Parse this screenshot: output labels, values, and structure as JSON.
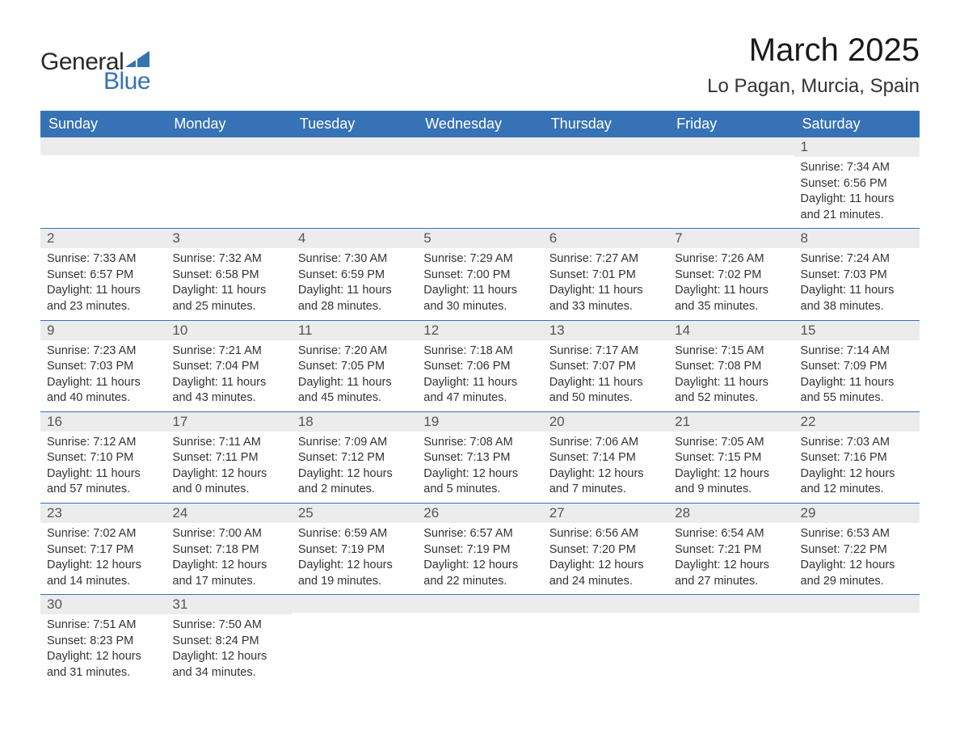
{
  "logo": {
    "text_general": "General",
    "text_blue": "Blue",
    "shape_color": "#3672b5"
  },
  "header": {
    "month_title": "March 2025",
    "location": "Lo Pagan, Murcia, Spain"
  },
  "calendar": {
    "header_bg": "#3672b5",
    "header_text_color": "#ffffff",
    "row_border_color": "#3672b5",
    "daynum_bg": "#ececec",
    "daynum_color": "#555555",
    "body_text_color": "#333333",
    "day_headers": [
      "Sunday",
      "Monday",
      "Tuesday",
      "Wednesday",
      "Thursday",
      "Friday",
      "Saturday"
    ],
    "weeks": [
      [
        {
          "day": "",
          "sunrise": "",
          "sunset": "",
          "daylight": ""
        },
        {
          "day": "",
          "sunrise": "",
          "sunset": "",
          "daylight": ""
        },
        {
          "day": "",
          "sunrise": "",
          "sunset": "",
          "daylight": ""
        },
        {
          "day": "",
          "sunrise": "",
          "sunset": "",
          "daylight": ""
        },
        {
          "day": "",
          "sunrise": "",
          "sunset": "",
          "daylight": ""
        },
        {
          "day": "",
          "sunrise": "",
          "sunset": "",
          "daylight": ""
        },
        {
          "day": "1",
          "sunrise": "Sunrise: 7:34 AM",
          "sunset": "Sunset: 6:56 PM",
          "daylight": "Daylight: 11 hours and 21 minutes."
        }
      ],
      [
        {
          "day": "2",
          "sunrise": "Sunrise: 7:33 AM",
          "sunset": "Sunset: 6:57 PM",
          "daylight": "Daylight: 11 hours and 23 minutes."
        },
        {
          "day": "3",
          "sunrise": "Sunrise: 7:32 AM",
          "sunset": "Sunset: 6:58 PM",
          "daylight": "Daylight: 11 hours and 25 minutes."
        },
        {
          "day": "4",
          "sunrise": "Sunrise: 7:30 AM",
          "sunset": "Sunset: 6:59 PM",
          "daylight": "Daylight: 11 hours and 28 minutes."
        },
        {
          "day": "5",
          "sunrise": "Sunrise: 7:29 AM",
          "sunset": "Sunset: 7:00 PM",
          "daylight": "Daylight: 11 hours and 30 minutes."
        },
        {
          "day": "6",
          "sunrise": "Sunrise: 7:27 AM",
          "sunset": "Sunset: 7:01 PM",
          "daylight": "Daylight: 11 hours and 33 minutes."
        },
        {
          "day": "7",
          "sunrise": "Sunrise: 7:26 AM",
          "sunset": "Sunset: 7:02 PM",
          "daylight": "Daylight: 11 hours and 35 minutes."
        },
        {
          "day": "8",
          "sunrise": "Sunrise: 7:24 AM",
          "sunset": "Sunset: 7:03 PM",
          "daylight": "Daylight: 11 hours and 38 minutes."
        }
      ],
      [
        {
          "day": "9",
          "sunrise": "Sunrise: 7:23 AM",
          "sunset": "Sunset: 7:03 PM",
          "daylight": "Daylight: 11 hours and 40 minutes."
        },
        {
          "day": "10",
          "sunrise": "Sunrise: 7:21 AM",
          "sunset": "Sunset: 7:04 PM",
          "daylight": "Daylight: 11 hours and 43 minutes."
        },
        {
          "day": "11",
          "sunrise": "Sunrise: 7:20 AM",
          "sunset": "Sunset: 7:05 PM",
          "daylight": "Daylight: 11 hours and 45 minutes."
        },
        {
          "day": "12",
          "sunrise": "Sunrise: 7:18 AM",
          "sunset": "Sunset: 7:06 PM",
          "daylight": "Daylight: 11 hours and 47 minutes."
        },
        {
          "day": "13",
          "sunrise": "Sunrise: 7:17 AM",
          "sunset": "Sunset: 7:07 PM",
          "daylight": "Daylight: 11 hours and 50 minutes."
        },
        {
          "day": "14",
          "sunrise": "Sunrise: 7:15 AM",
          "sunset": "Sunset: 7:08 PM",
          "daylight": "Daylight: 11 hours and 52 minutes."
        },
        {
          "day": "15",
          "sunrise": "Sunrise: 7:14 AM",
          "sunset": "Sunset: 7:09 PM",
          "daylight": "Daylight: 11 hours and 55 minutes."
        }
      ],
      [
        {
          "day": "16",
          "sunrise": "Sunrise: 7:12 AM",
          "sunset": "Sunset: 7:10 PM",
          "daylight": "Daylight: 11 hours and 57 minutes."
        },
        {
          "day": "17",
          "sunrise": "Sunrise: 7:11 AM",
          "sunset": "Sunset: 7:11 PM",
          "daylight": "Daylight: 12 hours and 0 minutes."
        },
        {
          "day": "18",
          "sunrise": "Sunrise: 7:09 AM",
          "sunset": "Sunset: 7:12 PM",
          "daylight": "Daylight: 12 hours and 2 minutes."
        },
        {
          "day": "19",
          "sunrise": "Sunrise: 7:08 AM",
          "sunset": "Sunset: 7:13 PM",
          "daylight": "Daylight: 12 hours and 5 minutes."
        },
        {
          "day": "20",
          "sunrise": "Sunrise: 7:06 AM",
          "sunset": "Sunset: 7:14 PM",
          "daylight": "Daylight: 12 hours and 7 minutes."
        },
        {
          "day": "21",
          "sunrise": "Sunrise: 7:05 AM",
          "sunset": "Sunset: 7:15 PM",
          "daylight": "Daylight: 12 hours and 9 minutes."
        },
        {
          "day": "22",
          "sunrise": "Sunrise: 7:03 AM",
          "sunset": "Sunset: 7:16 PM",
          "daylight": "Daylight: 12 hours and 12 minutes."
        }
      ],
      [
        {
          "day": "23",
          "sunrise": "Sunrise: 7:02 AM",
          "sunset": "Sunset: 7:17 PM",
          "daylight": "Daylight: 12 hours and 14 minutes."
        },
        {
          "day": "24",
          "sunrise": "Sunrise: 7:00 AM",
          "sunset": "Sunset: 7:18 PM",
          "daylight": "Daylight: 12 hours and 17 minutes."
        },
        {
          "day": "25",
          "sunrise": "Sunrise: 6:59 AM",
          "sunset": "Sunset: 7:19 PM",
          "daylight": "Daylight: 12 hours and 19 minutes."
        },
        {
          "day": "26",
          "sunrise": "Sunrise: 6:57 AM",
          "sunset": "Sunset: 7:19 PM",
          "daylight": "Daylight: 12 hours and 22 minutes."
        },
        {
          "day": "27",
          "sunrise": "Sunrise: 6:56 AM",
          "sunset": "Sunset: 7:20 PM",
          "daylight": "Daylight: 12 hours and 24 minutes."
        },
        {
          "day": "28",
          "sunrise": "Sunrise: 6:54 AM",
          "sunset": "Sunset: 7:21 PM",
          "daylight": "Daylight: 12 hours and 27 minutes."
        },
        {
          "day": "29",
          "sunrise": "Sunrise: 6:53 AM",
          "sunset": "Sunset: 7:22 PM",
          "daylight": "Daylight: 12 hours and 29 minutes."
        }
      ],
      [
        {
          "day": "30",
          "sunrise": "Sunrise: 7:51 AM",
          "sunset": "Sunset: 8:23 PM",
          "daylight": "Daylight: 12 hours and 31 minutes."
        },
        {
          "day": "31",
          "sunrise": "Sunrise: 7:50 AM",
          "sunset": "Sunset: 8:24 PM",
          "daylight": "Daylight: 12 hours and 34 minutes."
        },
        {
          "day": "",
          "sunrise": "",
          "sunset": "",
          "daylight": ""
        },
        {
          "day": "",
          "sunrise": "",
          "sunset": "",
          "daylight": ""
        },
        {
          "day": "",
          "sunrise": "",
          "sunset": "",
          "daylight": ""
        },
        {
          "day": "",
          "sunrise": "",
          "sunset": "",
          "daylight": ""
        },
        {
          "day": "",
          "sunrise": "",
          "sunset": "",
          "daylight": ""
        }
      ]
    ]
  }
}
